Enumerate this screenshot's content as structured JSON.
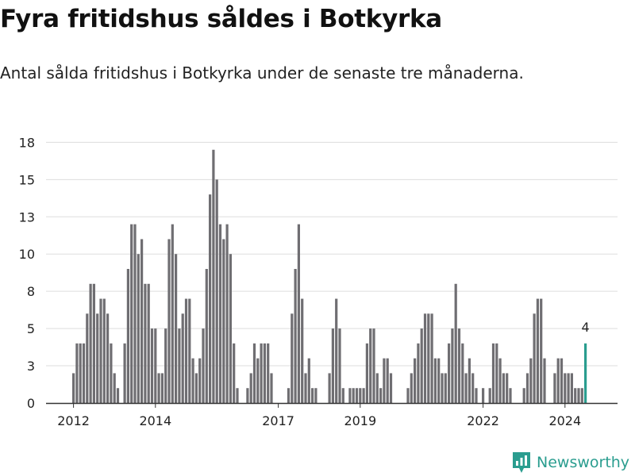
{
  "title": "Fyra fritidshus såldes i Botkyrka",
  "subtitle": "Antal sålda fritidshus i Botkyrka under de senaste tre månaderna.",
  "brand": "Newsworthy",
  "colors": {
    "bar": "#6f6e72",
    "highlight": "#2a9d8f",
    "grid": "#dddddd",
    "axis": "#333333",
    "brand": "#2a9d8f"
  },
  "chart_data": {
    "type": "bar",
    "ylim": [
      0,
      18
    ],
    "y_ticks": [
      "0",
      "3",
      "5",
      "8",
      "10",
      "13",
      "15",
      "18"
    ],
    "y_tick_values": [
      0,
      2.5,
      5,
      7.5,
      10,
      12.5,
      15,
      17.5
    ],
    "x_ticks": [
      "2012",
      "2014",
      "2017",
      "2019",
      "2022",
      "2024"
    ],
    "x_tick_index": [
      0,
      24,
      60,
      84,
      120,
      144
    ],
    "last_value_label": "4",
    "values": [
      2,
      4,
      4,
      4,
      6,
      8,
      8,
      6,
      7,
      7,
      6,
      4,
      2,
      1,
      0,
      4,
      9,
      12,
      12,
      10,
      11,
      8,
      8,
      5,
      5,
      2,
      2,
      5,
      11,
      12,
      10,
      5,
      6,
      7,
      7,
      3,
      2,
      3,
      5,
      9,
      14,
      17,
      15,
      12,
      11,
      12,
      10,
      4,
      1,
      0,
      0,
      1,
      2,
      4,
      3,
      4,
      4,
      4,
      2,
      0,
      0,
      0,
      0,
      1,
      6,
      9,
      12,
      7,
      2,
      3,
      1,
      1,
      0,
      0,
      0,
      2,
      5,
      7,
      5,
      1,
      0,
      1,
      1,
      1,
      1,
      1,
      4,
      5,
      5,
      2,
      1,
      3,
      3,
      2,
      0,
      0,
      0,
      0,
      1,
      2,
      3,
      4,
      5,
      6,
      6,
      6,
      3,
      3,
      2,
      2,
      4,
      5,
      8,
      5,
      4,
      2,
      3,
      2,
      1,
      0,
      1,
      0,
      1,
      4,
      4,
      3,
      2,
      2,
      1,
      0,
      0,
      0,
      1,
      2,
      3,
      6,
      7,
      7,
      3,
      0,
      0,
      2,
      3,
      3,
      2,
      2,
      2,
      1,
      1,
      1,
      4
    ]
  }
}
